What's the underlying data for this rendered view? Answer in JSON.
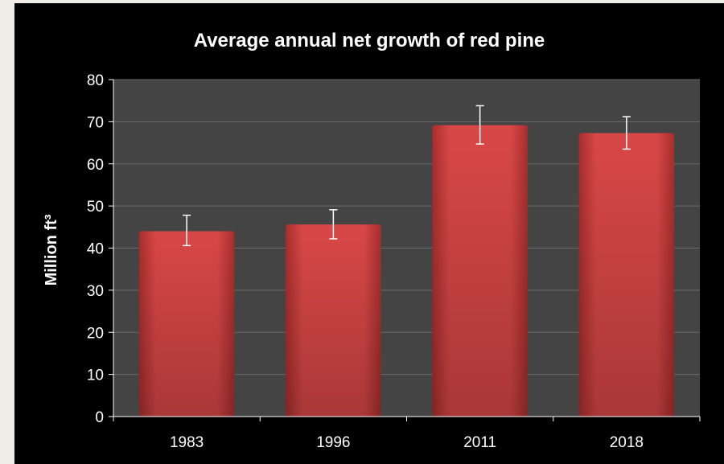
{
  "chart_data": {
    "type": "bar",
    "title": "Average annual net growth of red pine",
    "xlabel": "",
    "ylabel": "Million ft³",
    "categories": [
      "1983",
      "1996",
      "2011",
      "2018"
    ],
    "values": [
      44,
      45.6,
      69.2,
      67.3
    ],
    "error_low": [
      40.6,
      42.2,
      64.7,
      63.5
    ],
    "error_high": [
      47.8,
      49.1,
      73.8,
      71.2
    ],
    "ylim": [
      0,
      80
    ],
    "yticks": [
      0,
      10,
      20,
      30,
      40,
      50,
      60,
      70,
      80
    ],
    "grid": true,
    "legend": "none",
    "colors": {
      "bar": "#d84a4a",
      "bar_dark": "#a12a2a",
      "plot_bg": "#444444",
      "frame_bg": "#000000",
      "grid": "#6a6a6a",
      "error_bar": "#ffffff",
      "text": "#ffffff"
    }
  }
}
